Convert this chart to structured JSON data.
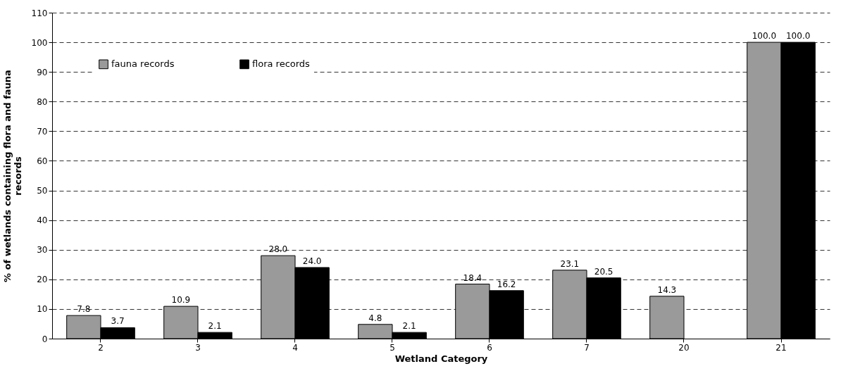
{
  "chart_data": {
    "type": "bar",
    "xlabel": "Wetland Category",
    "ylabel": "% of wetlands containing flora and fauna records",
    "categories": [
      "2",
      "3",
      "4",
      "5",
      "6",
      "7",
      "20",
      "21"
    ],
    "series": [
      {
        "name": "fauna records",
        "color": "#9a9a9a",
        "values": [
          7.8,
          10.9,
          28.0,
          4.8,
          18.4,
          23.1,
          14.3,
          100.0
        ],
        "value_labels": [
          "7.8",
          "10.9",
          "28.0",
          "4.8",
          "18.4",
          "23.1",
          "14.3",
          "100.0"
        ]
      },
      {
        "name": "flora records",
        "color": "#000000",
        "values": [
          3.7,
          2.1,
          24.0,
          2.1,
          16.2,
          20.5,
          null,
          100.0
        ],
        "value_labels": [
          "3.7",
          "2.1",
          "24.0",
          "2.1",
          "16.2",
          "20.5",
          null,
          "100.0"
        ]
      }
    ],
    "ylim": [
      0,
      110
    ],
    "yticks": [
      0,
      10,
      20,
      30,
      40,
      50,
      60,
      70,
      80,
      90,
      100,
      110
    ],
    "grid": "y",
    "legend": "top left"
  }
}
